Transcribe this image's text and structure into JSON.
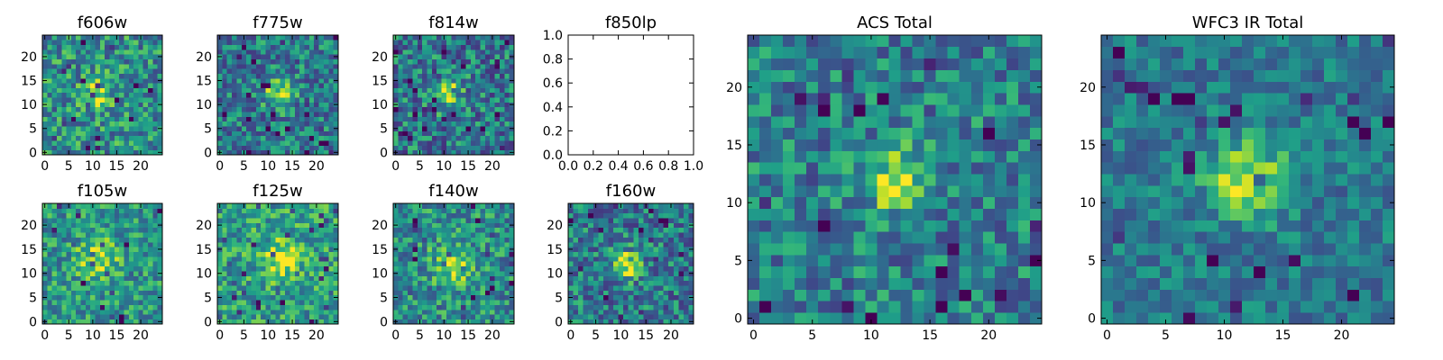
{
  "figure": {
    "colormap_low": "#440154",
    "colormap_mid": "#21918c",
    "colormap_high": "#fde725"
  },
  "chart_data": [
    {
      "type": "heatmap",
      "title": "f606w",
      "xticks": [
        0,
        5,
        10,
        15,
        20
      ],
      "yticks": [
        0,
        5,
        10,
        15,
        20
      ],
      "xlim": [
        -0.5,
        24.5
      ],
      "ylim": [
        -0.5,
        24.5
      ],
      "grid_size": 25,
      "blob": {
        "center": [
          11,
          12
        ],
        "radius": 3,
        "strength": 0.35
      },
      "noise_seed": 606,
      "noise_level": 0.55,
      "base": 0.58
    },
    {
      "type": "heatmap",
      "title": "f775w",
      "xticks": [
        0,
        5,
        10,
        15,
        20
      ],
      "yticks": [
        0,
        5,
        10,
        15,
        20
      ],
      "xlim": [
        -0.5,
        24.5
      ],
      "ylim": [
        -0.5,
        24.5
      ],
      "grid_size": 25,
      "blob": {
        "center": [
          12,
          12
        ],
        "radius": 3,
        "strength": 0.4
      },
      "noise_seed": 775,
      "noise_level": 0.55,
      "base": 0.5
    },
    {
      "type": "heatmap",
      "title": "f814w",
      "xticks": [
        0,
        5,
        10,
        15,
        20
      ],
      "yticks": [
        0,
        5,
        10,
        15,
        20
      ],
      "xlim": [
        -0.5,
        24.5
      ],
      "ylim": [
        -0.5,
        24.5
      ],
      "grid_size": 25,
      "blob": {
        "center": [
          11,
          12
        ],
        "radius": 3,
        "strength": 0.45
      },
      "noise_seed": 814,
      "noise_level": 0.6,
      "base": 0.48
    },
    {
      "type": "empty",
      "title": "f850lp",
      "xticks": [
        "0.0",
        "0.2",
        "0.4",
        "0.6",
        "0.8",
        "1.0"
      ],
      "yticks": [
        "0.0",
        "0.2",
        "0.4",
        "0.6",
        "0.8",
        "1.0"
      ],
      "xlim": [
        0,
        1
      ],
      "ylim": [
        0,
        1
      ]
    },
    {
      "type": "heatmap",
      "title": "f105w",
      "xticks": [
        0,
        5,
        10,
        15,
        20
      ],
      "yticks": [
        0,
        5,
        10,
        15,
        20
      ],
      "xlim": [
        -0.5,
        24.5
      ],
      "ylim": [
        -0.5,
        24.5
      ],
      "grid_size": 25,
      "blob": {
        "center": [
          11,
          13
        ],
        "radius": 4,
        "strength": 0.3
      },
      "noise_seed": 105,
      "noise_level": 0.45,
      "base": 0.62
    },
    {
      "type": "heatmap",
      "title": "f125w",
      "xticks": [
        0,
        5,
        10,
        15,
        20
      ],
      "yticks": [
        0,
        5,
        10,
        15,
        20
      ],
      "xlim": [
        -0.5,
        24.5
      ],
      "ylim": [
        -0.5,
        24.5
      ],
      "grid_size": 25,
      "blob": {
        "center": [
          13,
          13
        ],
        "radius": 4,
        "strength": 0.3
      },
      "noise_seed": 125,
      "noise_level": 0.45,
      "base": 0.65
    },
    {
      "type": "heatmap",
      "title": "f140w",
      "xticks": [
        0,
        5,
        10,
        15,
        20
      ],
      "yticks": [
        0,
        5,
        10,
        15,
        20
      ],
      "xlim": [
        -0.5,
        24.5
      ],
      "ylim": [
        -0.5,
        24.5
      ],
      "grid_size": 25,
      "blob": {
        "center": [
          12,
          12
        ],
        "radius": 4,
        "strength": 0.35
      },
      "noise_seed": 140,
      "noise_level": 0.5,
      "base": 0.58
    },
    {
      "type": "heatmap",
      "title": "f160w",
      "xticks": [
        0,
        5,
        10,
        15,
        20
      ],
      "yticks": [
        0,
        5,
        10,
        15,
        20
      ],
      "xlim": [
        -0.5,
        24.5
      ],
      "ylim": [
        -0.5,
        24.5
      ],
      "grid_size": 25,
      "blob": {
        "center": [
          11,
          12
        ],
        "radius": 3,
        "strength": 0.4
      },
      "noise_seed": 160,
      "noise_level": 0.55,
      "base": 0.5
    },
    {
      "type": "heatmap",
      "title": "ACS Total",
      "xticks": [
        0,
        5,
        10,
        15,
        20
      ],
      "yticks": [
        0,
        5,
        10,
        15,
        20
      ],
      "xlim": [
        -0.5,
        24.5
      ],
      "ylim": [
        -0.5,
        24.5
      ],
      "grid_size": 25,
      "blob": {
        "center": [
          12,
          12
        ],
        "radius": 2.5,
        "strength": 0.45
      },
      "noise_seed": 901,
      "noise_level": 0.5,
      "base": 0.52
    },
    {
      "type": "heatmap",
      "title": "WFC3 IR Total",
      "xticks": [
        0,
        5,
        10,
        15,
        20
      ],
      "yticks": [
        0,
        5,
        10,
        15,
        20
      ],
      "xlim": [
        -0.5,
        24.5
      ],
      "ylim": [
        -0.5,
        24.5
      ],
      "grid_size": 25,
      "blob": {
        "center": [
          12,
          12
        ],
        "radius": 3.5,
        "strength": 0.45
      },
      "noise_seed": 902,
      "noise_level": 0.35,
      "base": 0.5
    }
  ]
}
